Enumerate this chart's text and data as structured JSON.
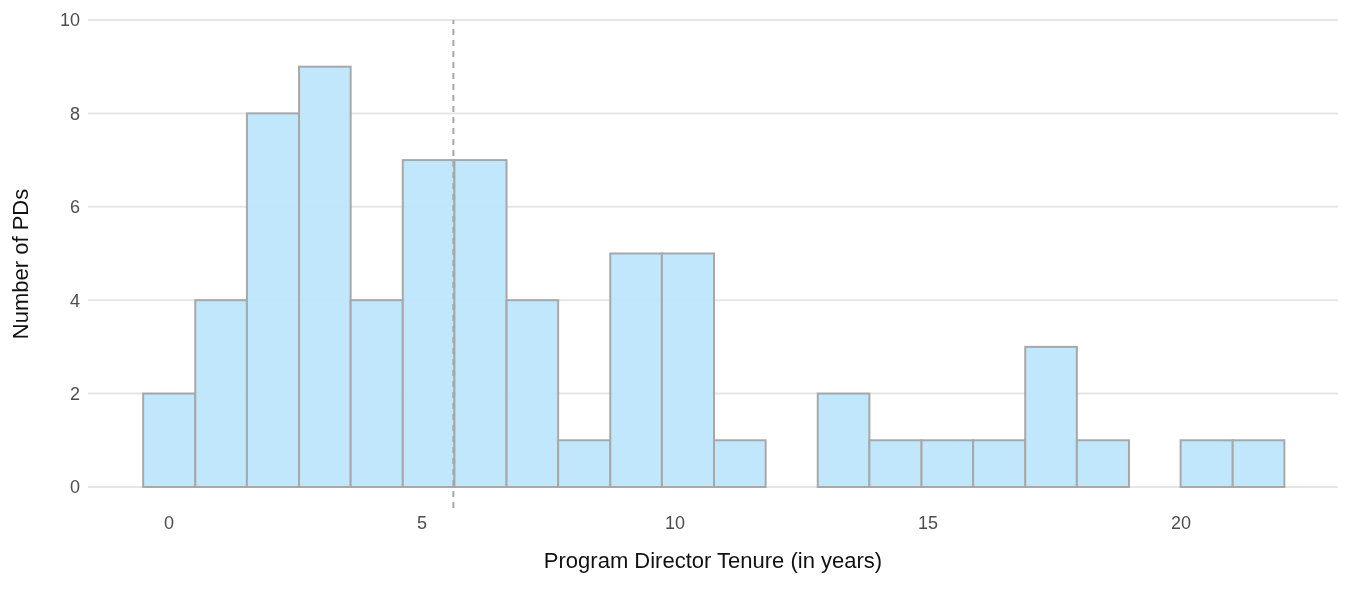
{
  "chart_data": {
    "type": "histogram",
    "bins": [
      -0.51,
      0.52,
      1.54,
      2.57,
      3.59,
      4.62,
      5.64,
      6.67,
      7.69,
      8.72,
      9.74,
      10.77,
      11.79,
      12.82,
      13.84,
      14.87,
      15.89,
      16.92,
      17.94,
      18.97,
      19.99,
      21.02,
      22.04
    ],
    "values": [
      2,
      4,
      8,
      9,
      4,
      7,
      7,
      4,
      1,
      5,
      5,
      1,
      0,
      2,
      1,
      1,
      1,
      3,
      1,
      0,
      1,
      1
    ],
    "color": "#bde6fb",
    "xlabel": "Program Director Tenure (in years)",
    "ylabel": "Number of PDs",
    "xlim": [
      -1.6,
      23.1
    ],
    "xticks": [
      0,
      5,
      10,
      15,
      20
    ],
    "ylim": [
      -0.45,
      10
    ],
    "yticks": [
      0,
      2,
      4,
      6,
      8,
      10
    ],
    "grid": "y",
    "ref_lines": [
      {
        "axis": "x",
        "value": 5.62,
        "color": "#a6a6a6",
        "line_style": "dashed"
      }
    ]
  }
}
